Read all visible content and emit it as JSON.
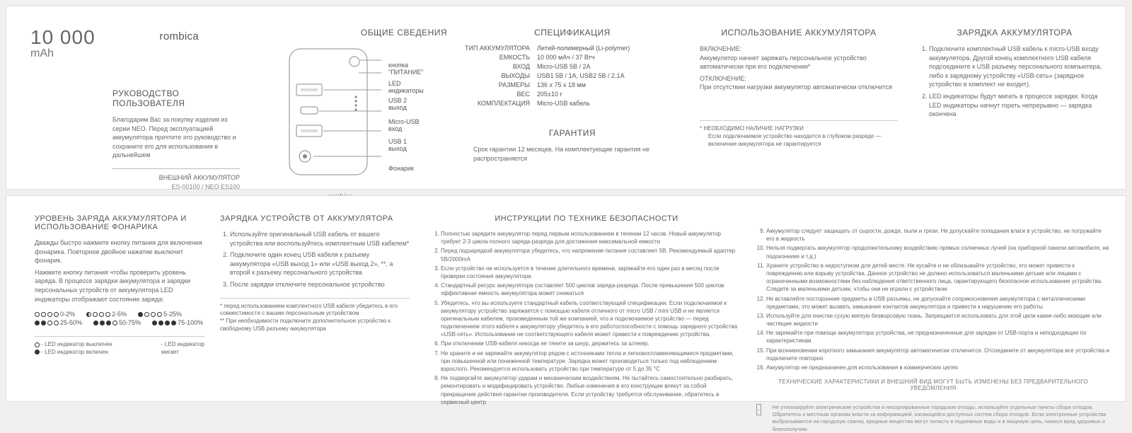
{
  "brand": "rombica",
  "capacity_top": "10 000",
  "capacity_unit": "mAh",
  "manual_title": "РУКОВОДСТВО ПОЛЬЗОВАТЕЛЯ",
  "manual_intro": "Благодарим Вас за покупку изделия из серии NEO. Перед эксплуатацией аккумулятора прочтите это руководство и сохраните его для использования в дальнейшем",
  "product_label": "ВНЕШНИЙ АККУМУЛЯТОР",
  "product_model": "ES-00100 / NEO ES100",
  "general_title": "ОБЩИЕ СВЕДЕНИЯ",
  "callouts": {
    "power": [
      "кнопка",
      "\"ПИТАНИЕ\""
    ],
    "led": [
      "LED",
      "индикаторы"
    ],
    "usb2": [
      "USB 2",
      "выход"
    ],
    "micro": [
      "Micro-USB",
      "вход"
    ],
    "usb1": [
      "USB 1",
      "выход"
    ],
    "flash": "Фонарик"
  },
  "spec_title": "СПЕЦИФИКАЦИЯ",
  "specs": [
    {
      "k": "ТИП АККУМУЛЯТОРА",
      "v": "Литий-полимерный (Li-polymer)"
    },
    {
      "k": "ЕМКОСТЬ",
      "v": "10 000 мАч / 37 Втч"
    },
    {
      "k": "ВХОД",
      "v": "Micro-USB 5В / 2А"
    },
    {
      "k": "ВЫХОДЫ",
      "v": "USB1 5В / 1А, USB2 5В / 2.1А"
    },
    {
      "k": "РАЗМЕРЫ",
      "v": "136 x 75 x 18 мм"
    },
    {
      "k": "ВЕС",
      "v": "205±10 г"
    },
    {
      "k": "КОМПЛЕКТАЦИЯ",
      "v": "Micro-USB кабель"
    }
  ],
  "warranty_title": "ГАРАНТИЯ",
  "warranty_text": "Срок гарантии 12 месяцев. На комплектующие гарантия не распространяется",
  "usage_title": "ИСПОЛЬЗОВАНИЕ АККУМУЛЯТОРА",
  "usage_on_h": "ВКЛЮЧЕНИЕ:",
  "usage_on": "Аккумулятор начнет заряжать персональное устройство автоматически при его подключении*",
  "usage_off_h": "ОТКЛЮЧЕНИЕ:",
  "usage_off": "При отсутствии нагрузки аккумулятор автоматически отключится",
  "usage_note1": "*   НЕОБХОДИМО НАЛИЧИЕ НАГРУЗКИ",
  "usage_note2": "Если подключаемое устройство находится в глубоком разряде — включение аккумулятора не гарантируется",
  "charge_title": "ЗАРЯДКА АККУМУЛЯТОРА",
  "charge_items": [
    "Подключите комплектный USB кабель к micro-USB входу аккумулятора. Другой конец комплектного USB кабеля подсоедините к USB разъему персонального компьютера, либо к зарядному устройству «USB-сеть» (зарядное устройство в комплект не входит).",
    "LED индикаторы будут мигать в процессе зарядки. Когда LED индикаторы начнут гореть непрерывно — зарядка окончена"
  ],
  "level_title": "УРОВЕНЬ ЗАРЯДА АККУМУЛЯТОРА И ИСПОЛЬЗОВАНИЕ ФОНАРИКА",
  "level_p1": "Дважды быстро нажмите кнопку питания для включения фонарика. Повторное двойное нажатие выключит фонарик.",
  "level_p2": "Нажмите кнопку питания чтобы проверить уровень заряда. В процессе зарядки аккумулятора и зарядки персональных устройств от аккумулятора LED индикаторы отображают состояние заряда:",
  "levels": [
    {
      "pattern": [
        0,
        0,
        0,
        0
      ],
      "label": "0-2%"
    },
    {
      "pattern": [
        2,
        0,
        0,
        0
      ],
      "label": "2-5%"
    },
    {
      "pattern": [
        1,
        0,
        0,
        0
      ],
      "label": "5-25%"
    },
    {
      "pattern": [
        1,
        1,
        0,
        0
      ],
      "label": "25-50%"
    },
    {
      "pattern": [
        1,
        1,
        1,
        0
      ],
      "label": "50-75%"
    },
    {
      "pattern": [
        1,
        1,
        1,
        1
      ],
      "label": "75-100%"
    }
  ],
  "legend": {
    "off": "- LED индикатор выключен",
    "on": "- LED индикатор включен",
    "blink1": "- LED индикатор",
    "blink2": "  мигает"
  },
  "chargefrom_title": "ЗАРЯДКА УСТРОЙСТВ ОТ АККУМУЛЯТОРА",
  "chargefrom_items": [
    "Используйте оригинальный USB кабель от вашего устройства или воспользуйтесь комплектным USB кабелем*",
    "Подключите один конец USB кабеля к разъему аккумулятора «USB выход 1» или «USB выход 2», **, а второй к разъему персонального устройства",
    "После зарядки отключите персональное устройство"
  ],
  "chargefrom_notes": [
    "*   перед использованием комплектного USB кабеля убедитесь в его совместимости с вашим персональным устройством",
    "**  При необходимости подключите дополнительное устройство к свободному USB разъему аккумулятора"
  ],
  "safety_title": "ИНСТРУКЦИИ ПО ТЕХНИКЕ БЕЗОПАСНОСТИ",
  "safety_col1": [
    "Полностью зарядите аккумулятор перед первым использованием в течении 12 часов. Новый аккумулятор требует 2-3 цикла полного заряда-разряда для достижения максимальной емкости",
    "Перед подзарядкой аккумулятора убедитесь, что напряжение питания составляет 5В. Рекомендуемый адаптер 5В/2000mA",
    "Если устройство не используется в течение длительного времени, заряжайте его один раз в месяц после проверки состояния аккумулятора",
    "Стандартный ресурс аккумулятора составляет 500 циклов заряда-разряда. После превышения 500 циклов эффективная емкость аккумулятора может снижаться",
    "Убедитесь, что вы используете стандартный кабель соответствующей спецификации. Если подключаемое к аккумулятору устройство заряжается с помощью кабеля отличного от micro USB / mini USB и не является оригинальным кабелем, произведенным той же компанией, что и подключаемое устройство — перед подключением этого кабеля к аккумулятору убедитесь в его работоспособности с помощь зарядного устройства «USB-сеть». Использование не соответствующего кабеля может привести к повреждению устройства.",
    "При отключении USB-кабеля никогда не тяните за шнур, держитесь за штекер.",
    "Не храните и не заряжайте аккумулятор рядом с источниками тепла и легковоспламеняющимися предметами, при повышенной или пониженной температуре. Зарядка может производиться только под наблюдением взрослого. Рекомендуется использовать устройство при температуре от 5 до 35 °C",
    "Не подвергайте аккумулятор ударам и механическим воздействиям. Не пытайтесь самостоятельно разбирать, ремонтировать и модифицировать устройство. Любые изменения в его конструкции влекут за собой прекращение действия гарантии производителя. Если устройству требуется обслуживание, обратитесь в сервисный центр"
  ],
  "safety_col2": [
    "Аккумулятор следует защищать от сырости, дождя, пыли и грязи. Не допускайте попадания влаги в устройство, не погружайте его в жидкость",
    "Нельзя подвергать аккумулятор продолжительному воздействию прямых солнечных лучей (на приборной панели автомобиля, на подоконнике и т.д.)",
    "Храните устройство в недоступном для детей месте. Не кусайте и не облизывайте устройство, это может привести к повреждению или взрыву устройства. Данное устройство не должно использоваться маленькими детьми или лицами с ограниченными возможностями без наблюдения ответственного лица, гарантирующего безопасное использование устройства. Следите за маленькими детьми, чтобы они не играли с устройством",
    "Не вставляйте посторонние предметы в USB разъемы, не допускайте соприкосновения аккумулятора с металлическими предметами, это может вызвать замыкание контактов аккумулятора и привести к нарушению его работы",
    "Используйте для очистки сухую мягкую безворсовую ткань. Запрещается использовать для этой цели какие-либо моющие или чистящие жидкости",
    "Не заряжайте при помощи аккумулятора устройства, не предназначенные для зарядки от USB-порта и неподходящие по характеристикам",
    "При возникновении короткого замыкания аккумулятор автоматически отключится. Отсоедините от аккумулятора все устройства и подключите повторно",
    "Аккумулятор не предназначен для использования в коммерческих целях"
  ],
  "disclaimer": "ТЕХНИЧЕСКИЕ ХАРАКТЕРИСТИКИ И ВНЕШНИЙ ВИД МОГУТ БЫТЬ ИЗМЕНЕНЫ БЕЗ ПРЕДВАРИТЕЛЬНОГО УВЕДОМЛЕНИЯ",
  "weee": "Не утилизируйте электрические устройства в несортированные городские отходы, используйте отдельные пункты сбора отходов. Обратитесь к местным органам власти за информацией, касающейся доступных систем сбора отходов. Если электронные устройства выбрасываются на городскую свалку, вредные вещества могут попасть в подземные воды и в пищевую цепь, нанося вред здоровью и благополучию"
}
